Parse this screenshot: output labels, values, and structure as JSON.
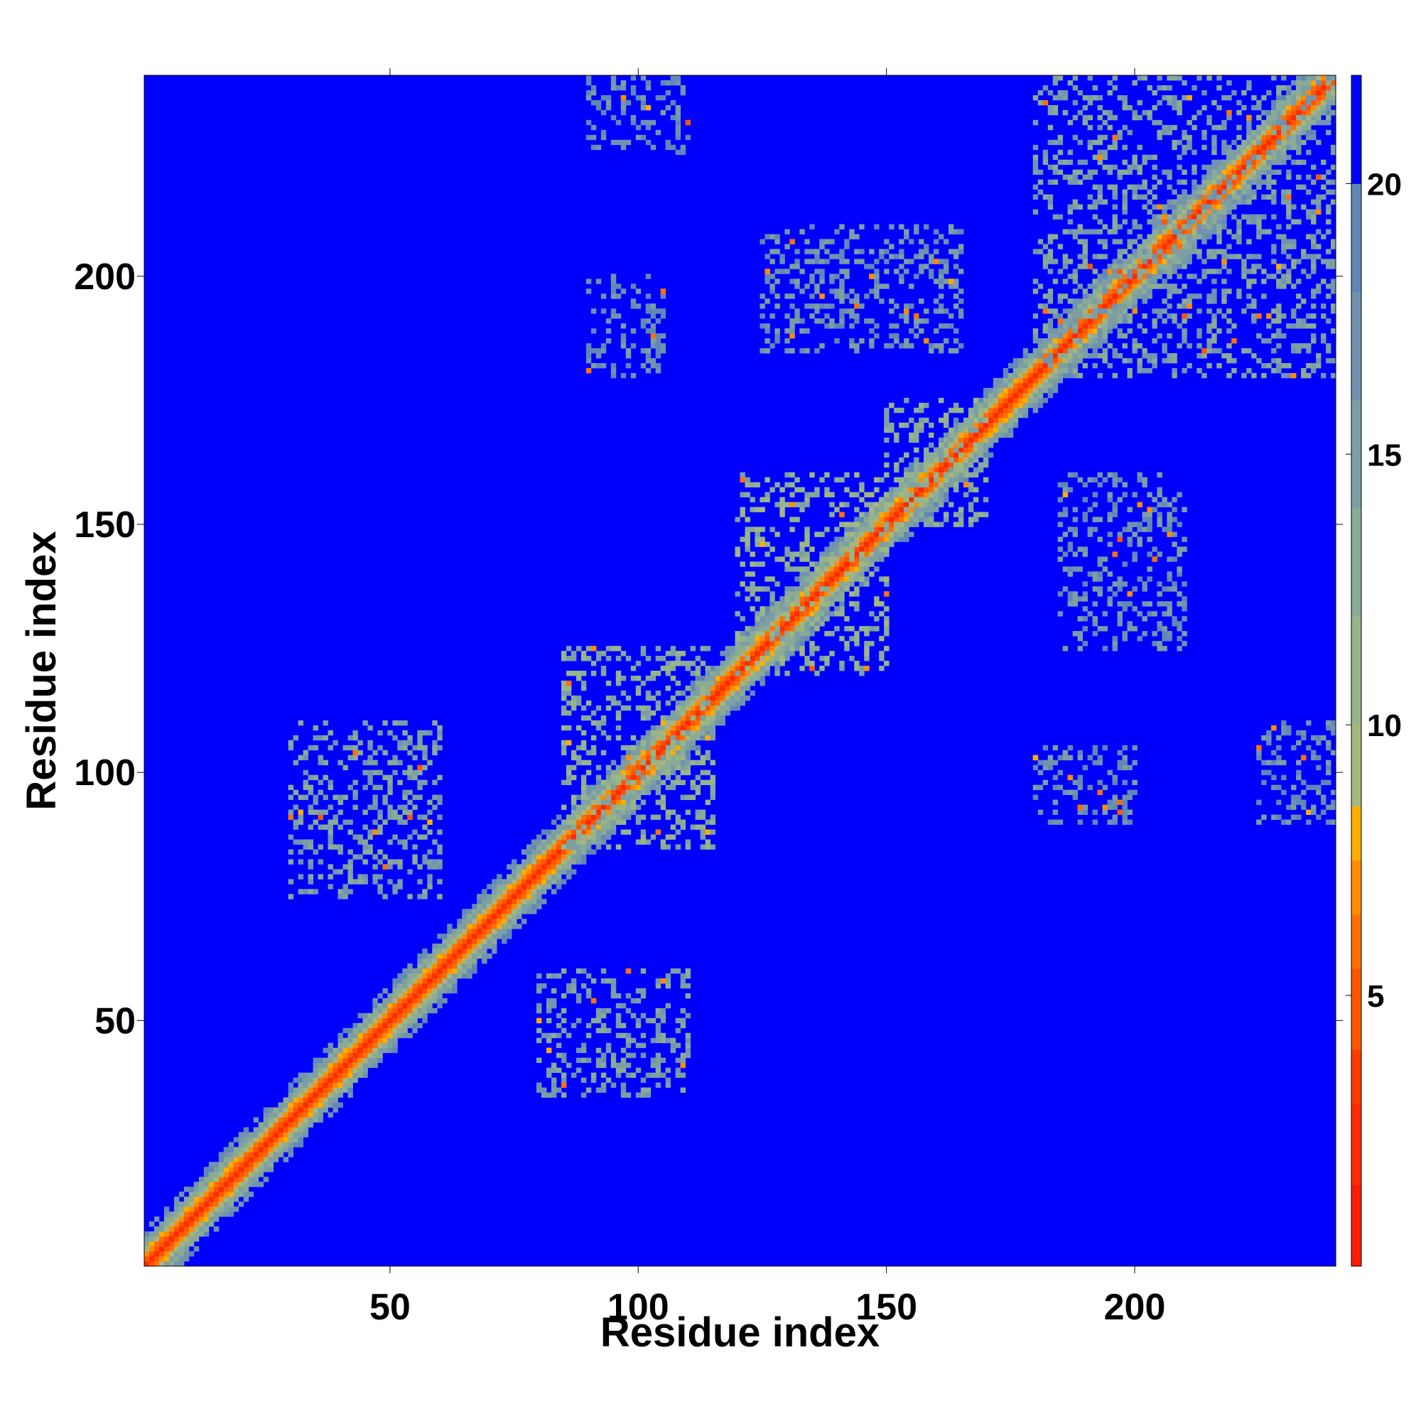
{
  "chart_data": {
    "type": "heatmap",
    "title": "",
    "xlabel": "Residue index",
    "ylabel": "Residue index",
    "xlim": [
      1,
      240
    ],
    "ylim": [
      1,
      240
    ],
    "x_ticks": [
      50,
      100,
      150,
      200
    ],
    "y_ticks": [
      50,
      100,
      150,
      200
    ],
    "colorbar": {
      "range": [
        0,
        22
      ],
      "ticks": [
        5,
        10,
        15,
        20
      ],
      "colors": [
        {
          "from": 0,
          "to": 1.5,
          "color": "#ff1a00"
        },
        {
          "from": 1.5,
          "to": 3,
          "color": "#ff2a00"
        },
        {
          "from": 3,
          "to": 4,
          "color": "#ff3c00"
        },
        {
          "from": 4,
          "to": 5.5,
          "color": "#ff5500"
        },
        {
          "from": 5.5,
          "to": 6.5,
          "color": "#ff7000"
        },
        {
          "from": 6.5,
          "to": 7.5,
          "color": "#ff8c00"
        },
        {
          "from": 7.5,
          "to": 8.5,
          "color": "#ffad00"
        },
        {
          "from": 8.5,
          "to": 10,
          "color": "#a6b77d"
        },
        {
          "from": 10,
          "to": 12,
          "color": "#98b589"
        },
        {
          "from": 12,
          "to": 14,
          "color": "#8aab96"
        },
        {
          "from": 14,
          "to": 16,
          "color": "#7d9fa3"
        },
        {
          "from": 16,
          "to": 18,
          "color": "#7193ae"
        },
        {
          "from": 18,
          "to": 20,
          "color": "#6088b5"
        },
        {
          "from": 20,
          "to": 22,
          "color": "#0000ff"
        }
      ]
    },
    "band": {
      "description": "diagonal distance band",
      "diagonal_value": 2,
      "near_diagonal_values": [
        4,
        6,
        8,
        12,
        16
      ]
    },
    "off_diagonal_blobs": [
      {
        "x": [
          30,
          60
        ],
        "y": [
          75,
          110
        ],
        "value": 15
      },
      {
        "x": [
          80,
          110
        ],
        "y": [
          35,
          60
        ],
        "value": 15
      },
      {
        "x": [
          85,
          115
        ],
        "y": [
          85,
          125
        ],
        "value": 13
      },
      {
        "x": [
          120,
          150
        ],
        "y": [
          120,
          160
        ],
        "value": 12
      },
      {
        "x": [
          150,
          170
        ],
        "y": [
          150,
          175
        ],
        "value": 13
      },
      {
        "x": [
          180,
          240
        ],
        "y": [
          180,
          240
        ],
        "value": 15
      },
      {
        "x": [
          185,
          210
        ],
        "y": [
          125,
          160
        ],
        "value": 17
      },
      {
        "x": [
          125,
          165
        ],
        "y": [
          185,
          210
        ],
        "value": 17
      },
      {
        "x": [
          90,
          110
        ],
        "y": [
          225,
          240
        ],
        "value": 18
      },
      {
        "x": [
          225,
          240
        ],
        "y": [
          90,
          110
        ],
        "value": 18
      },
      {
        "x": [
          180,
          200
        ],
        "y": [
          90,
          105
        ],
        "value": 18
      },
      {
        "x": [
          90,
          105
        ],
        "y": [
          180,
          200
        ],
        "value": 18
      }
    ]
  }
}
